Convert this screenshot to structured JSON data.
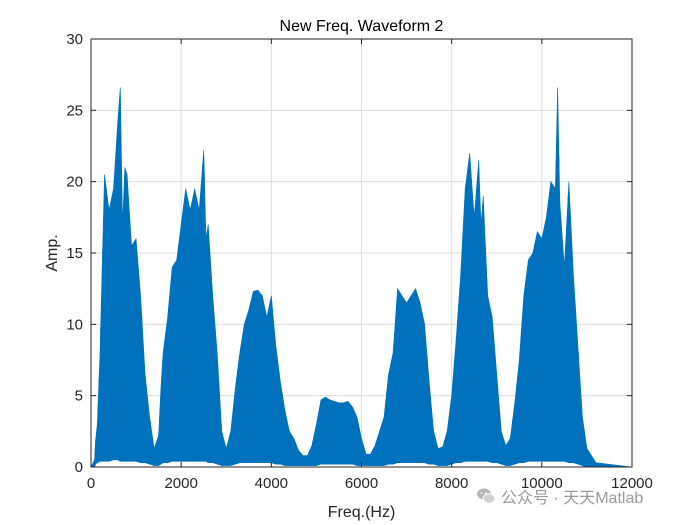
{
  "chart_data": {
    "type": "area",
    "title": "New Freq. Waveform 2",
    "xlabel": "Freq.(Hz)",
    "ylabel": "Amp.",
    "xlim": [
      0,
      12000
    ],
    "ylim": [
      0,
      30
    ],
    "xticks": [
      0,
      2000,
      4000,
      6000,
      8000,
      10000,
      12000
    ],
    "yticks": [
      0,
      5,
      10,
      15,
      20,
      25,
      30
    ],
    "grid": true,
    "series_color": "#0072BD",
    "series": [
      {
        "x": [
          0,
          80,
          100,
          140,
          200,
          300,
          400,
          500,
          600,
          650,
          700,
          750,
          800,
          900,
          1000,
          1100,
          1200,
          1300,
          1400,
          1500,
          1550,
          1600,
          1700,
          1800,
          1900,
          2000,
          2100,
          2200,
          2300,
          2400,
          2500,
          2550,
          2600,
          2700,
          2800,
          2900,
          3000,
          3100,
          3200,
          3300,
          3400,
          3500,
          3600,
          3700,
          3800,
          3900,
          4000,
          4100,
          4200,
          4300,
          4400,
          4500,
          4600,
          4700,
          4800,
          4900,
          5000,
          5100,
          5200,
          5300,
          5400,
          5500,
          5600,
          5700,
          5800,
          5900,
          6000,
          6100,
          6200,
          6300,
          6400,
          6500,
          6600,
          6700,
          6800,
          6900,
          7000,
          7100,
          7200,
          7300,
          7400,
          7500,
          7600,
          7700,
          7800,
          7900,
          8000,
          8100,
          8200,
          8300,
          8400,
          8500,
          8600,
          8650,
          8700,
          8800,
          8900,
          9000,
          9100,
          9200,
          9300,
          9400,
          9500,
          9600,
          9700,
          9800,
          9900,
          10000,
          10100,
          10200,
          10300,
          10350,
          10400,
          10500,
          10600,
          10700,
          10800,
          10900,
          11000,
          11200,
          12000
        ],
        "ymax": [
          0,
          0.5,
          1.8,
          3.0,
          8.0,
          20.5,
          18,
          19.5,
          24.5,
          26.6,
          17,
          21,
          20.5,
          15.5,
          16,
          12,
          6.5,
          3.5,
          1.3,
          2.2,
          5.5,
          8,
          10.5,
          14,
          14.5,
          17,
          19.5,
          18,
          19.5,
          18,
          22.2,
          16,
          17,
          12,
          8,
          2.5,
          1.3,
          2.5,
          5.5,
          8,
          10,
          11,
          12.3,
          12.4,
          12,
          10.5,
          12,
          8.5,
          6,
          4,
          2.5,
          2,
          1.2,
          0.8,
          0.8,
          1.5,
          3,
          4.7,
          4.9,
          4.7,
          4.6,
          4.5,
          4.5,
          4.6,
          4.2,
          3.5,
          2,
          0.9,
          0.9,
          1.5,
          2.5,
          3.5,
          6.5,
          8,
          12.5,
          12,
          11.5,
          12,
          12.5,
          11.5,
          10,
          6,
          2.5,
          1.3,
          1.4,
          2.5,
          5,
          9,
          13.5,
          19.5,
          22,
          17.5,
          21.5,
          17,
          19,
          12,
          10.5,
          6.5,
          2.5,
          1.5,
          2,
          4.5,
          7.5,
          12,
          14.5,
          15,
          16.5,
          16,
          17.5,
          20,
          19.5,
          26.6,
          18.5,
          14,
          20,
          13.5,
          8.5,
          3.5,
          1.3,
          0.3,
          0
        ],
        "ymin": [
          0,
          0,
          0.2,
          0.3,
          0.4,
          0.4,
          0.4,
          0.5,
          0.5,
          0.4,
          0.4,
          0.4,
          0.4,
          0.4,
          0.4,
          0.3,
          0.3,
          0.2,
          0.1,
          0.1,
          0.2,
          0.3,
          0.3,
          0.4,
          0.4,
          0.4,
          0.4,
          0.4,
          0.4,
          0.4,
          0.4,
          0.4,
          0.3,
          0.3,
          0.2,
          0.1,
          0.1,
          0.1,
          0.2,
          0.3,
          0.3,
          0.3,
          0.3,
          0.3,
          0.3,
          0.3,
          0.3,
          0.2,
          0.2,
          0.1,
          0.1,
          0.1,
          0.1,
          0.1,
          0.1,
          0.1,
          0.1,
          0.2,
          0.2,
          0.2,
          0.2,
          0.2,
          0.2,
          0.2,
          0.2,
          0.1,
          0.1,
          0.1,
          0.1,
          0.1,
          0.1,
          0.1,
          0.2,
          0.2,
          0.3,
          0.3,
          0.3,
          0.3,
          0.3,
          0.3,
          0.3,
          0.2,
          0.2,
          0.1,
          0.1,
          0.1,
          0.2,
          0.3,
          0.3,
          0.4,
          0.4,
          0.4,
          0.4,
          0.4,
          0.4,
          0.4,
          0.3,
          0.3,
          0.2,
          0.1,
          0.1,
          0.2,
          0.3,
          0.3,
          0.4,
          0.4,
          0.4,
          0.4,
          0.4,
          0.4,
          0.4,
          0.4,
          0.4,
          0.4,
          0.3,
          0.3,
          0.2,
          0.1,
          0,
          0,
          0
        ]
      }
    ]
  },
  "watermark": {
    "text": "公众号 · 天天Matlab",
    "icon": "wechat-icon"
  }
}
